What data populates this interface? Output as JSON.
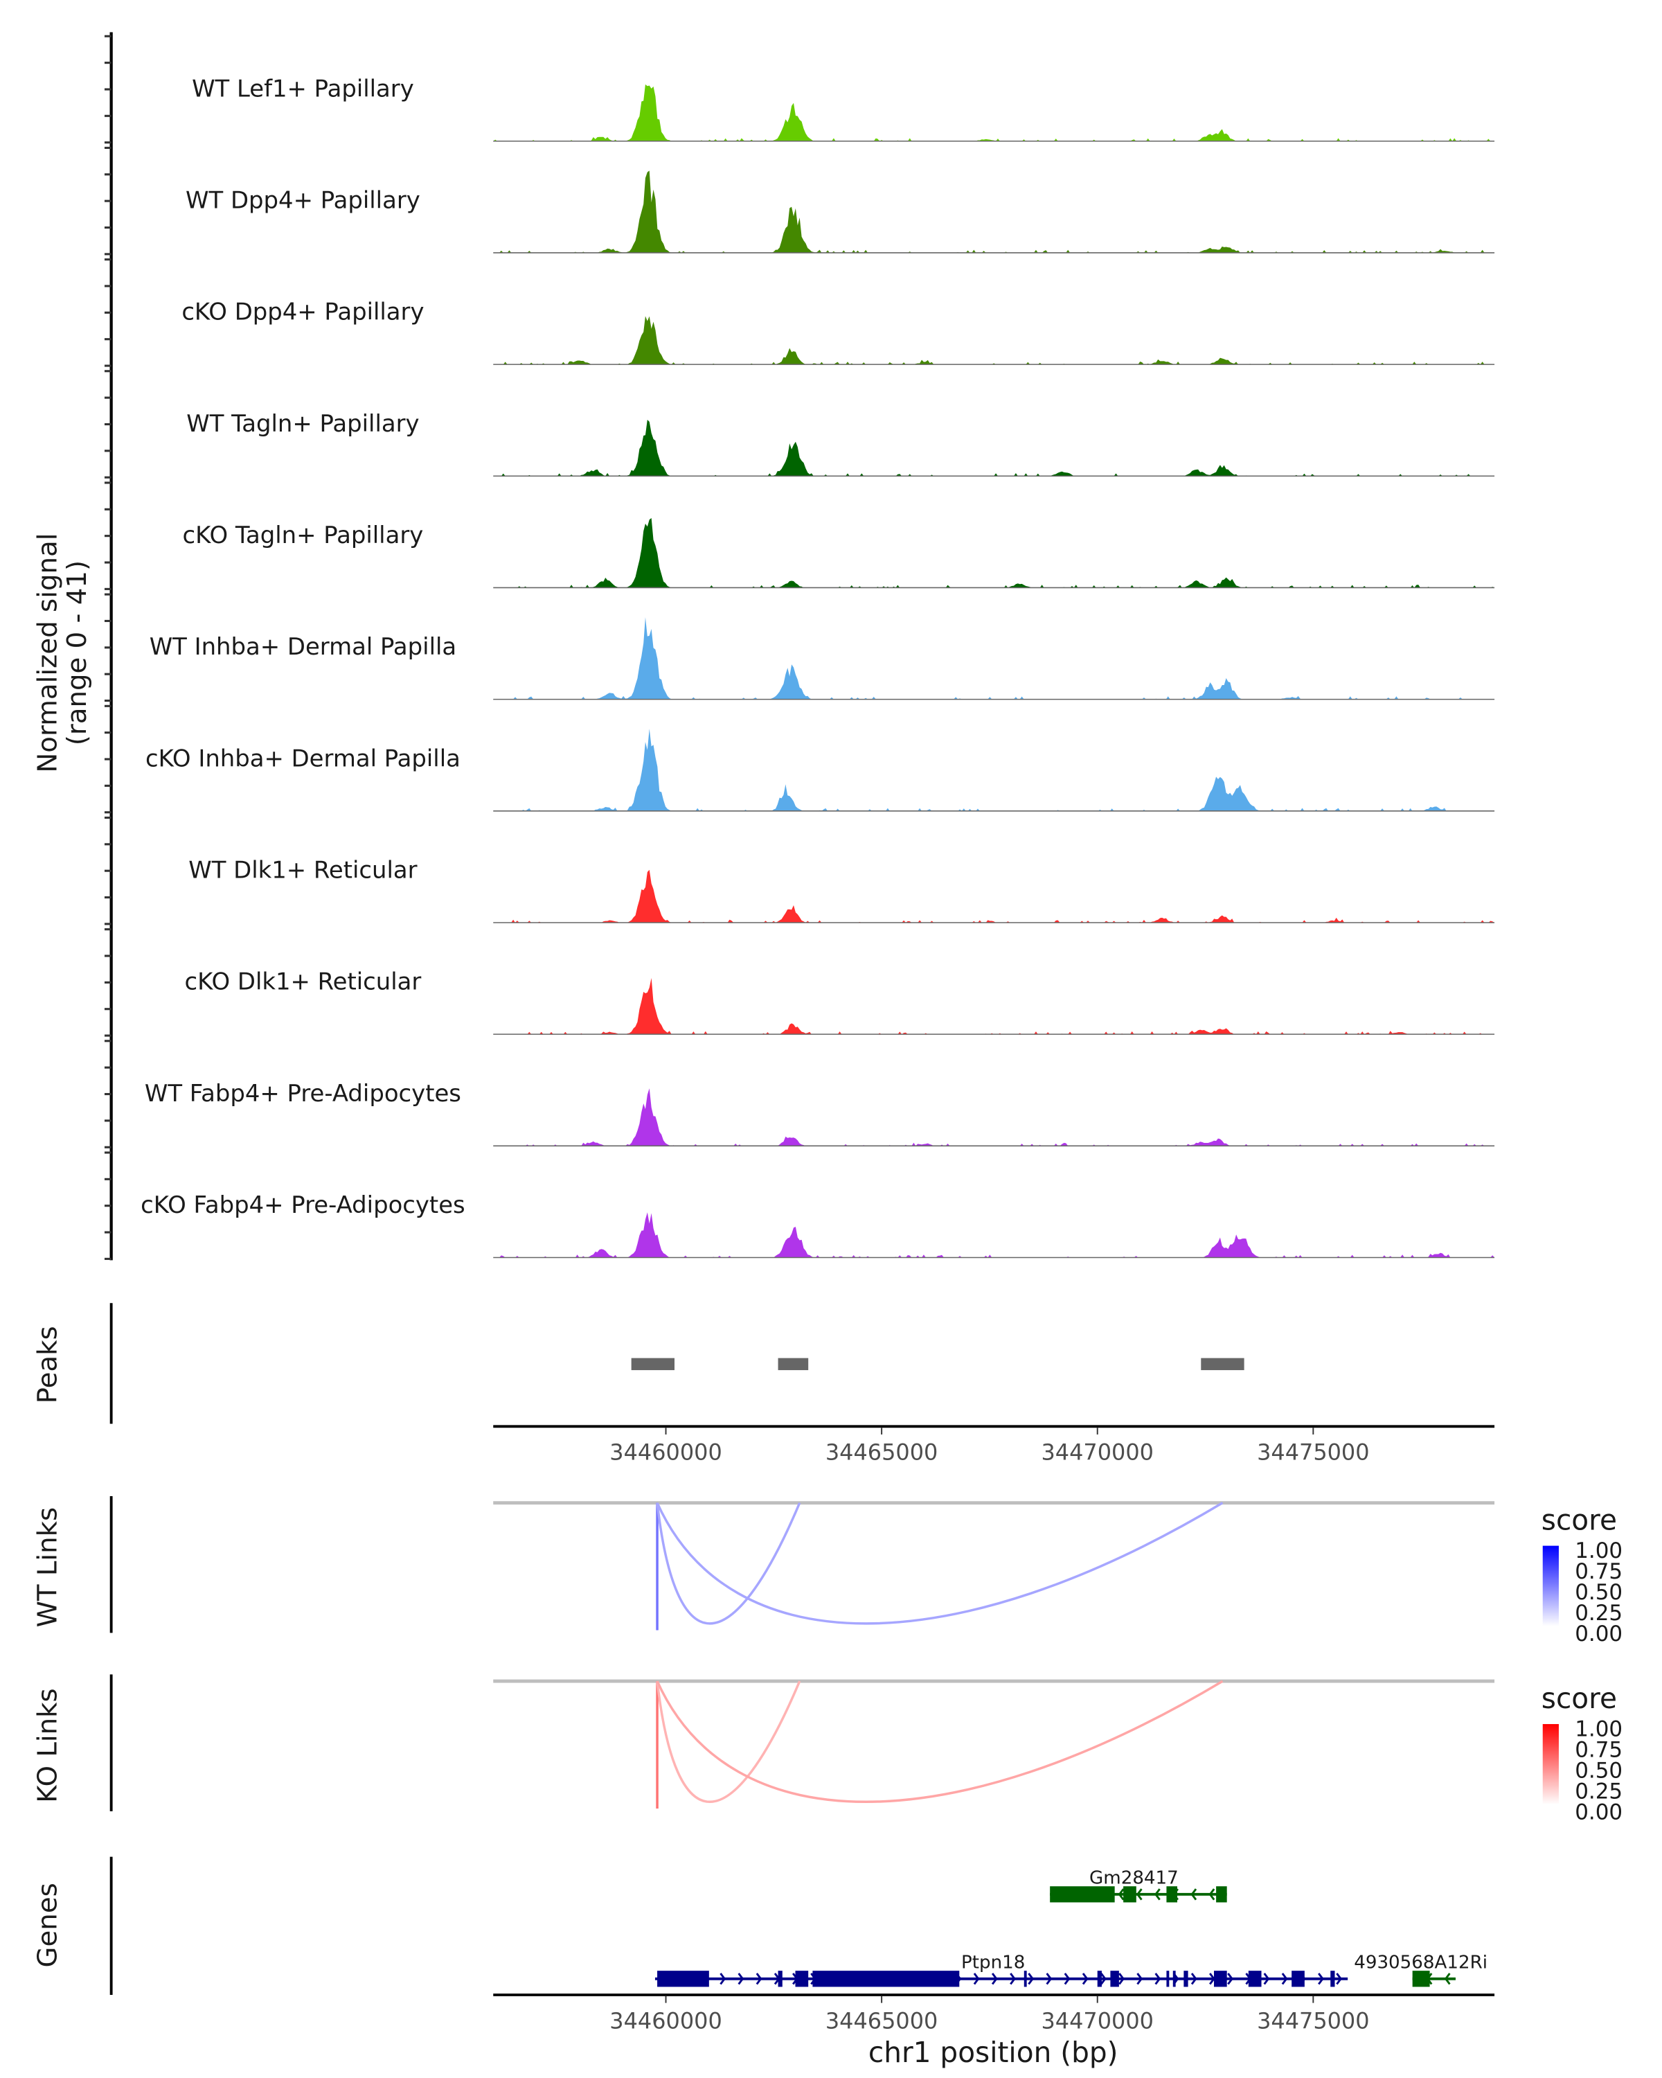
{
  "chart_data": {
    "type": "area",
    "title": "",
    "xlabel": "chr1 position (bp)",
    "ylabel": "Normalized signal\n(range 0 - 41)",
    "ylabel_lines": [
      "Normalized signal",
      "(range 0 - 41)"
    ],
    "xlim": [
      34456000,
      34479200
    ],
    "ylim": [
      0,
      41
    ],
    "x_ticks": [
      34460000,
      34465000,
      34470000,
      34475000
    ],
    "x_tick_labels": [
      "34460000",
      "34465000",
      "34470000",
      "34475000"
    ],
    "coverage_tracks": [
      {
        "name": "WT Lef1+ Papillary",
        "color": "#66cc00",
        "peaks": [
          [
            34459600,
            30
          ],
          [
            34462950,
            17
          ],
          [
            34472900,
            4
          ],
          [
            34472600,
            3
          ],
          [
            34458500,
            2
          ],
          [
            34467400,
            1
          ]
        ]
      },
      {
        "name": "WT Dpp4+ Papillary",
        "color": "#448800",
        "peaks": [
          [
            34459600,
            34
          ],
          [
            34462950,
            21
          ],
          [
            34473000,
            3
          ],
          [
            34472600,
            2
          ],
          [
            34458700,
            2
          ],
          [
            34478000,
            1
          ]
        ]
      },
      {
        "name": "cKO Dpp4+ Papillary",
        "color": "#448800",
        "peaks": [
          [
            34459600,
            25
          ],
          [
            34462900,
            7
          ],
          [
            34472900,
            3
          ],
          [
            34471500,
            2
          ],
          [
            34458000,
            2
          ],
          [
            34466000,
            1
          ]
        ]
      },
      {
        "name": "WT Tagln+ Papillary",
        "color": "#006400",
        "peaks": [
          [
            34459600,
            30
          ],
          [
            34462950,
            16
          ],
          [
            34472900,
            5
          ],
          [
            34472300,
            3
          ],
          [
            34458300,
            3
          ],
          [
            34469200,
            2
          ]
        ]
      },
      {
        "name": "cKO Tagln+ Papillary",
        "color": "#006400",
        "peaks": [
          [
            34459600,
            32
          ],
          [
            34462900,
            3
          ],
          [
            34473000,
            5
          ],
          [
            34472300,
            3
          ],
          [
            34458600,
            4
          ],
          [
            34468200,
            2
          ]
        ]
      },
      {
        "name": "WT Inhba+ Dermal Papilla",
        "color": "#5aabea",
        "peaks": [
          [
            34459600,
            41
          ],
          [
            34462900,
            15
          ],
          [
            34473000,
            9
          ],
          [
            34472600,
            6
          ],
          [
            34458700,
            3
          ],
          [
            34474500,
            1
          ]
        ]
      },
      {
        "name": "cKO Inhba+ Dermal Papilla",
        "color": "#5aabea",
        "peaks": [
          [
            34459600,
            41
          ],
          [
            34462800,
            10
          ],
          [
            34472800,
            16
          ],
          [
            34473300,
            11
          ],
          [
            34458600,
            2
          ],
          [
            34477800,
            2
          ]
        ]
      },
      {
        "name": "WT Dlk1+ Reticular",
        "color": "#ff2d2d",
        "peaks": [
          [
            34459600,
            23
          ],
          [
            34462900,
            7
          ],
          [
            34472900,
            3
          ],
          [
            34471500,
            2
          ],
          [
            34458700,
            1
          ],
          [
            34475500,
            1
          ]
        ]
      },
      {
        "name": "cKO Dlk1+ Reticular",
        "color": "#ff2d2d",
        "peaks": [
          [
            34459600,
            25
          ],
          [
            34462950,
            5
          ],
          [
            34472900,
            3
          ],
          [
            34472400,
            2
          ],
          [
            34458700,
            1
          ],
          [
            34477000,
            1
          ]
        ]
      },
      {
        "name": "WT Fabp4+ Pre-Adipocytes",
        "color": "#b035ea",
        "peaks": [
          [
            34459600,
            24
          ],
          [
            34462900,
            5
          ],
          [
            34472800,
            3
          ],
          [
            34472400,
            2
          ],
          [
            34458300,
            2
          ],
          [
            34466000,
            1
          ]
        ]
      },
      {
        "name": "cKO Fabp4+ Pre-Adipocytes",
        "color": "#b035ea",
        "peaks": [
          [
            34459600,
            22
          ],
          [
            34462950,
            15
          ],
          [
            34473300,
            12
          ],
          [
            34472800,
            8
          ],
          [
            34458500,
            4
          ],
          [
            34477900,
            2
          ]
        ]
      }
    ],
    "peaks_track": {
      "label": "Peaks",
      "color": "#666666",
      "regions": [
        [
          34459200,
          34460200
        ],
        [
          34462600,
          34463300
        ],
        [
          34472400,
          34473400
        ]
      ]
    },
    "links_tracks": [
      {
        "label": "WT Links",
        "color_low": "#ffffff",
        "color_high": "#0000ff",
        "links": [
          {
            "start": 34459800,
            "end": 34459800,
            "score": 0.55
          },
          {
            "start": 34459800,
            "end": 34463100,
            "score": 0.35
          },
          {
            "start": 34459800,
            "end": 34472900,
            "score": 0.35
          }
        ],
        "legend": {
          "title": "score",
          "labels": [
            "1.00",
            "0.75",
            "0.50",
            "0.25",
            "0.00"
          ]
        }
      },
      {
        "label": "KO Links",
        "color_low": "#ffffff",
        "color_high": "#ff0000",
        "links": [
          {
            "start": 34459800,
            "end": 34459800,
            "score": 0.55
          },
          {
            "start": 34459800,
            "end": 34463100,
            "score": 0.3
          },
          {
            "start": 34459800,
            "end": 34472900,
            "score": 0.35
          }
        ],
        "legend": {
          "title": "score",
          "labels": [
            "1.00",
            "0.75",
            "0.50",
            "0.25",
            "0.00"
          ]
        }
      }
    ],
    "genes_track": {
      "label": "Genes",
      "genes": [
        {
          "name": "Gm28417",
          "strand": "-",
          "color": "#006400",
          "start": 34468900,
          "end": 34473000,
          "row": 0,
          "exons": [
            [
              34468900,
              34470400
            ],
            [
              34470600,
              34470900
            ],
            [
              34471600,
              34471850
            ],
            [
              34472750,
              34473000
            ]
          ]
        },
        {
          "name": "Ptpn18",
          "strand": "+",
          "color": "#00008b",
          "start": 34459750,
          "end": 34475800,
          "row": 1,
          "exons": [
            [
              34459800,
              34461000
            ],
            [
              34462600,
              34462700
            ],
            [
              34463000,
              34463300
            ],
            [
              34463400,
              34466800
            ],
            [
              34468300,
              34468350
            ],
            [
              34470000,
              34470100
            ],
            [
              34470300,
              34470500
            ],
            [
              34471600,
              34471650
            ],
            [
              34471750,
              34471800
            ],
            [
              34472000,
              34472100
            ],
            [
              34472700,
              34473000
            ],
            [
              34473500,
              34473800
            ],
            [
              34474500,
              34474800
            ],
            [
              34475400,
              34475500
            ]
          ]
        },
        {
          "name": "4930568A12Ri",
          "strand": "-",
          "color": "#006400",
          "start": 34477300,
          "end": 34478300,
          "row": 1,
          "exons": [
            [
              34477300,
              34477700
            ]
          ]
        }
      ]
    }
  }
}
